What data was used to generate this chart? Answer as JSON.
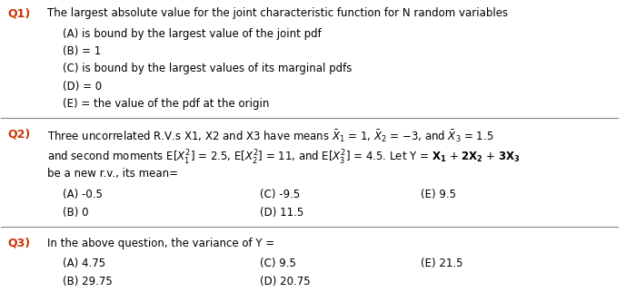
{
  "bg_color": "#ffffff",
  "q_color": "#cc3300",
  "text_color": "#000000",
  "figsize": [
    7.0,
    3.22
  ],
  "dpi": 100,
  "q1_label": "Q1)",
  "q1_line1": "The largest absolute value for the joint characteristic function for N random variables",
  "q1_A": "(A) is bound by the largest value of the joint pdf",
  "q1_B": "(B) = 1",
  "q1_C": "(C) is bound by the largest values of its marginal pdfs",
  "q1_D": "(D) = 0",
  "q1_E": "(E) = the value of the pdf at the origin",
  "q2_label": "Q2)",
  "q2_line3": "be a new r.v., its mean=",
  "q2_A": "(A) -0.5",
  "q2_B": "(B) 0",
  "q2_C": "(C) -9.5",
  "q2_D": "(D) 11.5",
  "q2_E": "(E) 9.5",
  "q3_label": "Q3)",
  "q3_line1": "In the above question, the variance of Y =",
  "q3_A": "(A) 4.75",
  "q3_B": "(B) 29.75",
  "q3_C": "(C) 9.5",
  "q3_D": "(D) 20.75",
  "q3_E": "(E) 21.5",
  "font_size": 8.5,
  "font_size_q": 9.0
}
